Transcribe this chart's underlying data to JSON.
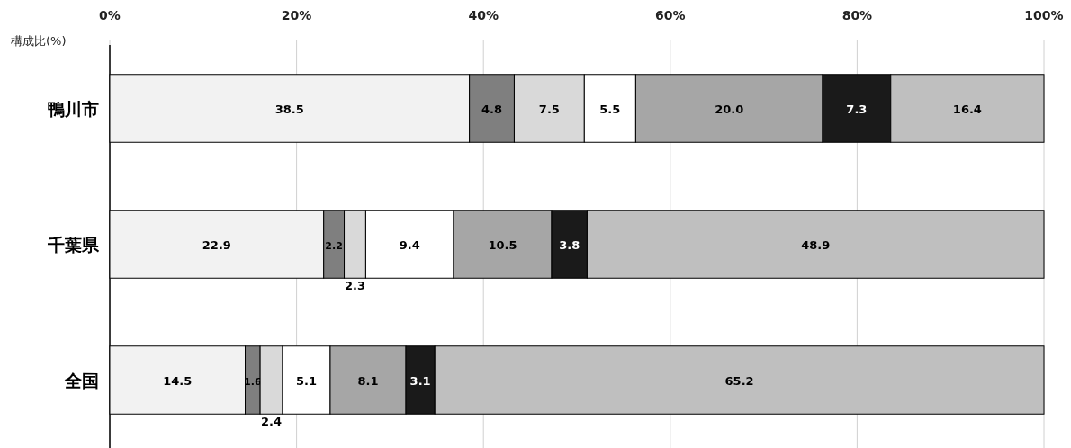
{
  "chart_data": {
    "type": "bar",
    "orientation": "horizontal",
    "stacked": true,
    "xlabel": "構成比(%)",
    "categories": [
      "鴨川市",
      "千葉県",
      "全国"
    ],
    "xlim": [
      0,
      100
    ],
    "xticks": [
      {
        "value": 0,
        "label": "0%"
      },
      {
        "value": 20,
        "label": "20%"
      },
      {
        "value": 40,
        "label": "40%"
      },
      {
        "value": 60,
        "label": "60%"
      },
      {
        "value": 80,
        "label": "80%"
      },
      {
        "value": 100,
        "label": "100%"
      }
    ],
    "grid": "x",
    "series": [
      {
        "color": "#f2f2f2",
        "values": [
          38.5,
          22.9,
          14.5
        ],
        "value_labels": [
          "38.5",
          "22.9",
          "14.5"
        ]
      },
      {
        "color": "#7f7f7f",
        "values": [
          4.8,
          2.2,
          1.6
        ],
        "value_labels": [
          "4.8",
          "2.2",
          "1.6"
        ]
      },
      {
        "color": "#d9d9d9",
        "values": [
          7.5,
          2.3,
          2.4
        ],
        "value_labels": [
          "7.5",
          "2.3",
          "2.4"
        ]
      },
      {
        "color": "#ffffff",
        "values": [
          5.5,
          9.4,
          5.1
        ],
        "value_labels": [
          "5.5",
          "9.4",
          "5.1"
        ]
      },
      {
        "color": "#a6a6a6",
        "values": [
          20.0,
          10.5,
          8.1
        ],
        "value_labels": [
          "20.0",
          "10.5",
          "8.1"
        ]
      },
      {
        "color": "#1a1a1a",
        "values": [
          7.3,
          3.8,
          3.1
        ],
        "value_labels": [
          "7.3",
          "3.8",
          "3.1"
        ]
      },
      {
        "color": "#bfbfbf",
        "values": [
          16.4,
          48.9,
          65.2
        ],
        "value_labels": [
          "16.4",
          "48.9",
          "65.2"
        ]
      }
    ]
  }
}
